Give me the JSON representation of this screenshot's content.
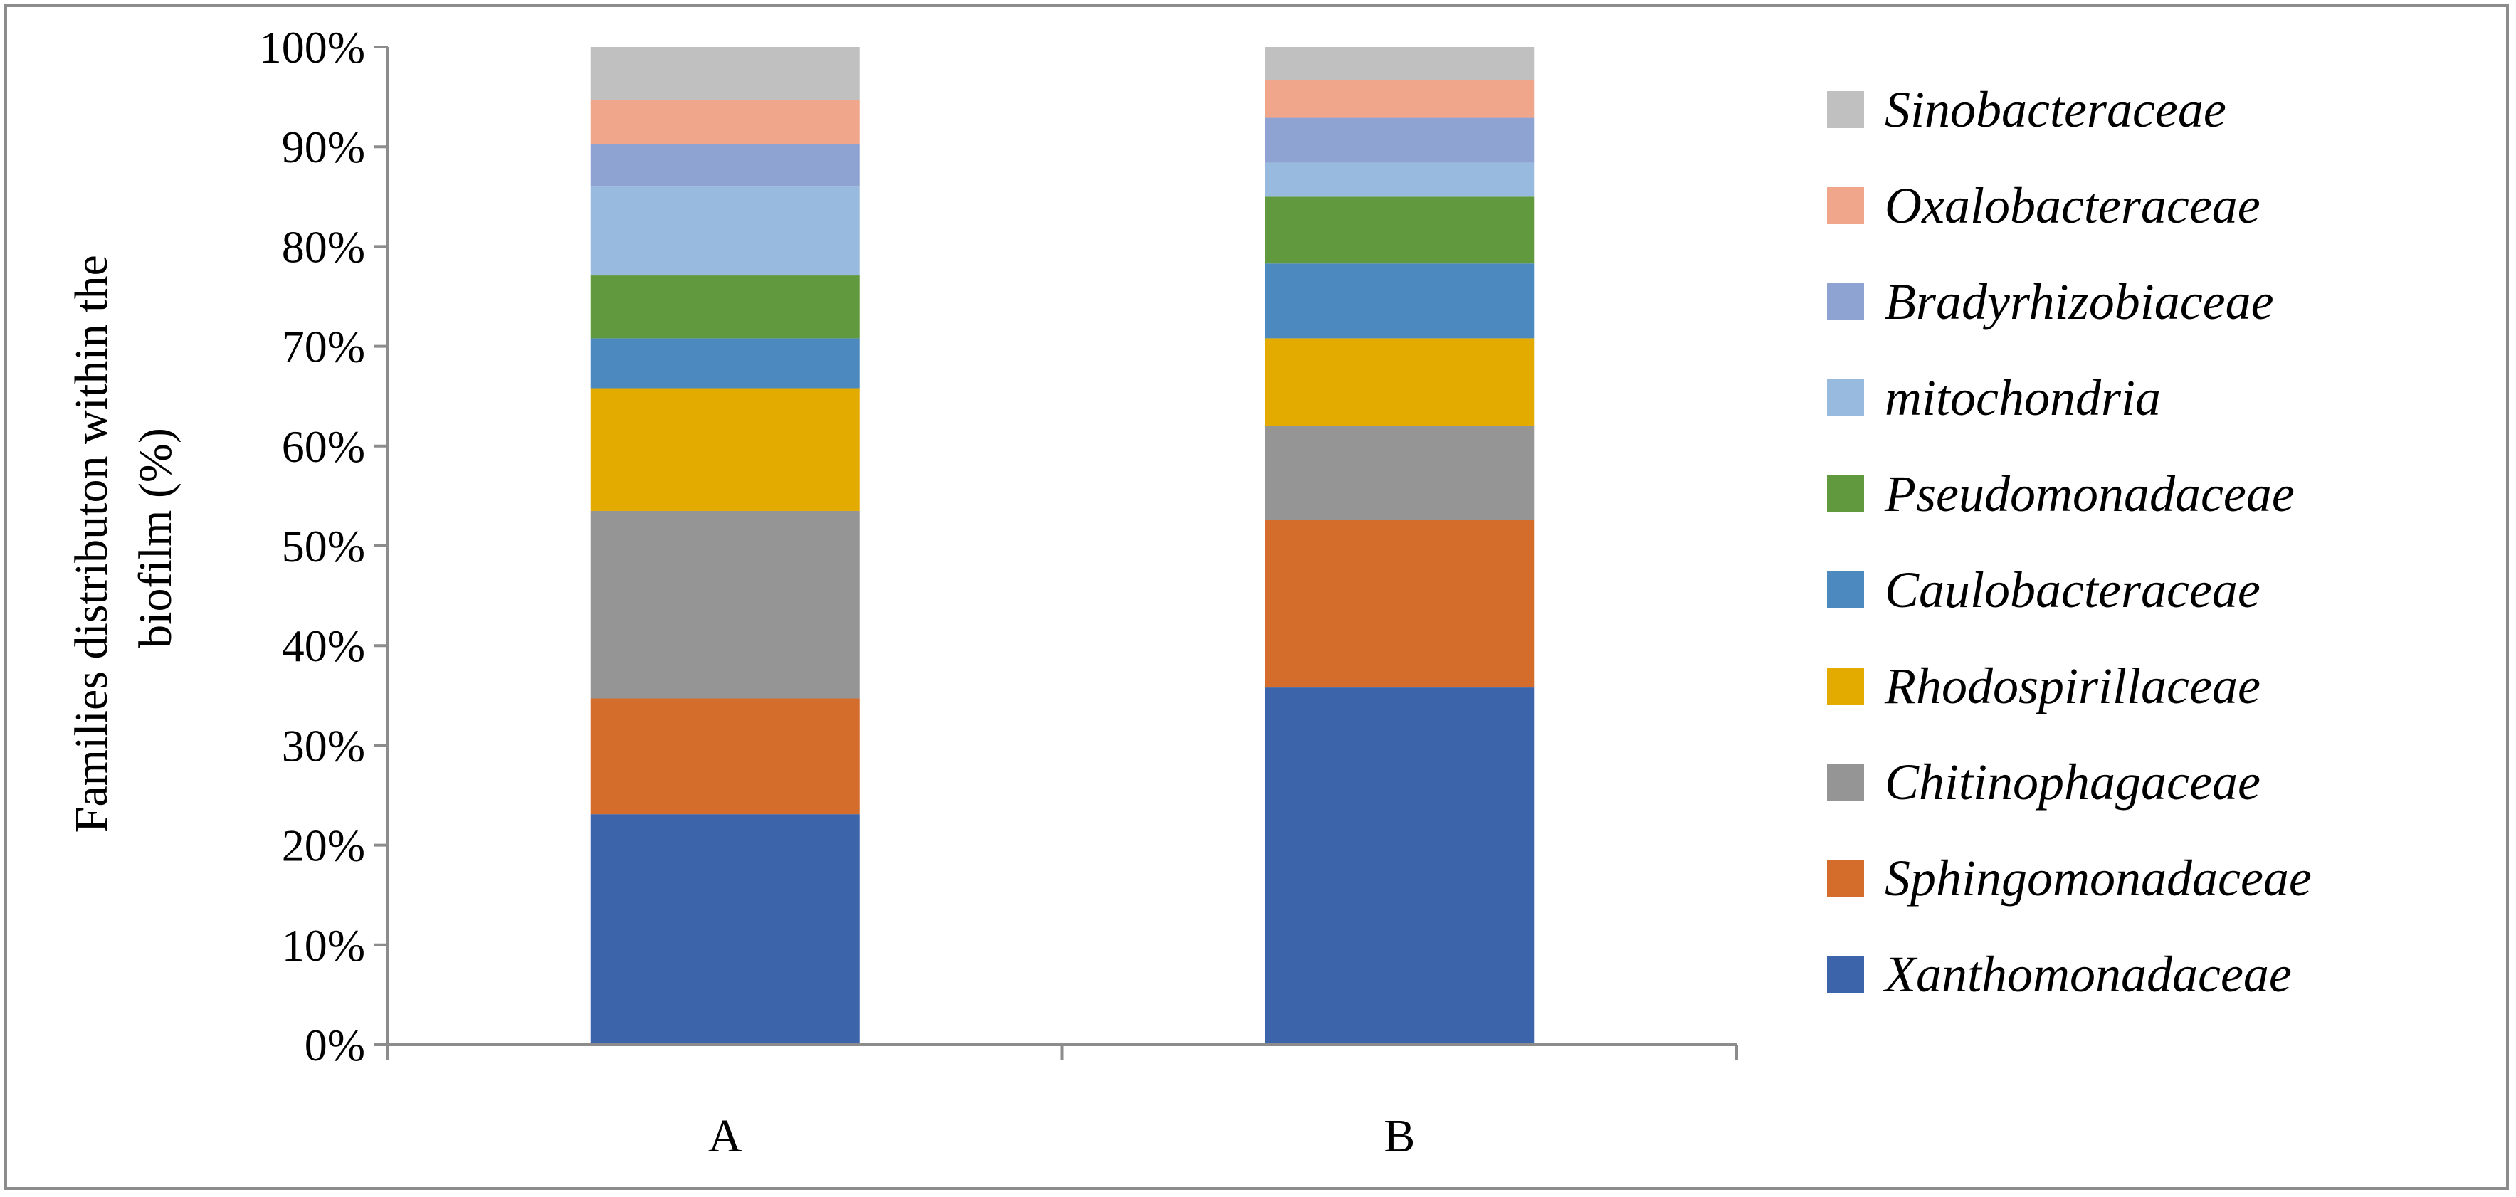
{
  "chart_data": {
    "type": "bar",
    "stacked": true,
    "percent_stacked": true,
    "categories": [
      "A",
      "B"
    ],
    "ylabel": "Families distributon within the biofilm (%)",
    "ylabel_lines": [
      "Families distributon within the",
      "biofilm (%)"
    ],
    "xlabel": "",
    "ylim": [
      0,
      100
    ],
    "y_ticks": [
      "0%",
      "10%",
      "20%",
      "30%",
      "40%",
      "50%",
      "60%",
      "70%",
      "80%",
      "90%",
      "100%"
    ],
    "grid": false,
    "legend_position": "right",
    "series": [
      {
        "name": "Xanthomonadaceae",
        "color": "#3c64ab",
        "values": [
          23.1,
          35.8
        ]
      },
      {
        "name": "Sphingomonadaceae",
        "color": "#d46c2c",
        "values": [
          11.6,
          16.8
        ]
      },
      {
        "name": "Chitinophagaceae",
        "color": "#959595",
        "values": [
          18.8,
          9.4
        ]
      },
      {
        "name": "Rhodospirillaceae",
        "color": "#e3aa00",
        "values": [
          12.3,
          8.8
        ]
      },
      {
        "name": "Caulobacteraceae",
        "color": "#4c89bf",
        "values": [
          5.0,
          7.5
        ]
      },
      {
        "name": "Pseudomonadaceae",
        "color": "#619a3e",
        "values": [
          6.3,
          6.7
        ]
      },
      {
        "name": "mitochondria",
        "color": "#98badf",
        "values": [
          8.9,
          3.4
        ]
      },
      {
        "name": "Bradyrhizobiaceae",
        "color": "#8fa3d3",
        "values": [
          4.3,
          4.5
        ]
      },
      {
        "name": "Oxalobacteraceae",
        "color": "#f0a68a",
        "values": [
          4.4,
          3.8
        ]
      },
      {
        "name": "Sinobacteraceae",
        "color": "#c0c0c0",
        "values": [
          5.3,
          3.3
        ]
      }
    ]
  }
}
